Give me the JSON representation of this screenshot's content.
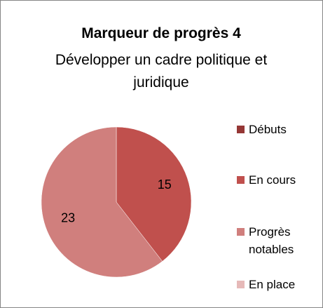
{
  "chart_data": {
    "type": "pie",
    "title": "Marqueur de progrès 4",
    "subtitle": "Développer un cadre politique et juridique",
    "categories": [
      "Débuts",
      "En cours",
      "Progrès notables",
      "En place"
    ],
    "values": [
      0,
      15,
      23,
      0
    ],
    "colors": [
      "#953735",
      "#c0504d",
      "#d07f7d",
      "#e6b9b8"
    ],
    "legend": "right"
  }
}
